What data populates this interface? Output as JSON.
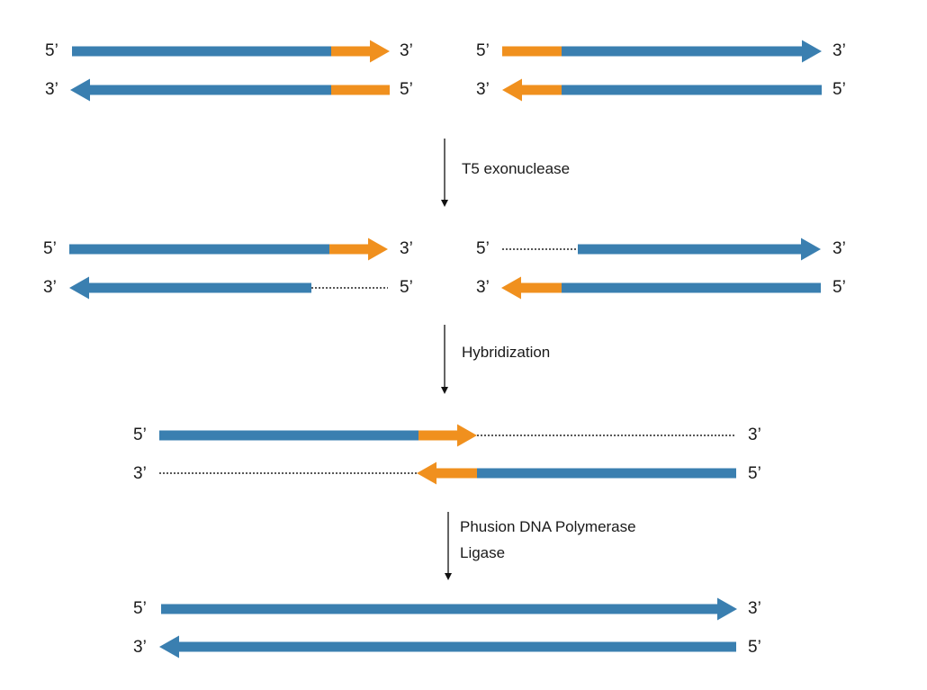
{
  "colors": {
    "dna_strand": "#3a7fb0",
    "overlap_region": "#f0901e",
    "step_arrow": "#111111",
    "single_strand_gap": "#222222"
  },
  "end_labels": {
    "five_prime": "5’",
    "three_prime": "3’"
  },
  "steps": [
    {
      "labels": [
        "T5 exonuclease"
      ]
    },
    {
      "labels": [
        "Hybridization"
      ]
    },
    {
      "labels": [
        "Phusion DNA Polymerase",
        "Ligase"
      ]
    }
  ]
}
